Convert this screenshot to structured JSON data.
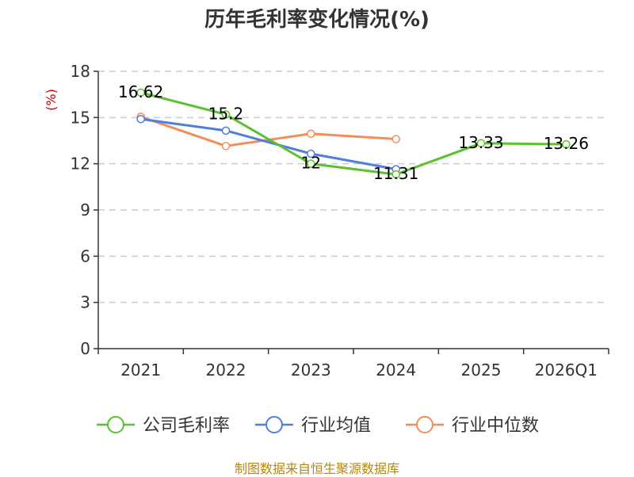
{
  "chart_data": {
    "type": "line",
    "title": "历年毛利率变化情况(%)",
    "ylabel": "(%)",
    "categories": [
      "2021",
      "2022",
      "2023",
      "2024",
      "2025",
      "2026Q1"
    ],
    "ylim": [
      0,
      18
    ],
    "yticks": [
      0,
      3,
      6,
      9,
      12,
      15,
      18
    ],
    "grid": true,
    "legend_position": "bottom",
    "series": [
      {
        "name": "公司毛利率",
        "color": "#5cc12f",
        "values": [
          16.62,
          15.2,
          12,
          11.31,
          13.33,
          13.26
        ],
        "labels": [
          "16.62",
          "15.2",
          "12",
          "11.31",
          "13.33",
          "13.26"
        ]
      },
      {
        "name": "行业均值",
        "color": "#4f7fdc",
        "values": [
          14.9,
          14.15,
          12.65,
          11.65,
          null,
          null
        ]
      },
      {
        "name": "行业中位数",
        "color": "#f28e5a",
        "values": [
          15.05,
          13.15,
          13.95,
          13.6,
          null,
          null
        ]
      }
    ]
  },
  "source": "制图数据来自恒生聚源数据库"
}
